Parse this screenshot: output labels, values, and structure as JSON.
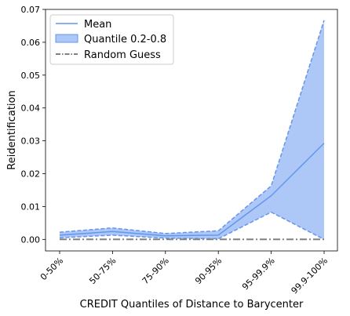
{
  "chart_data": {
    "type": "line",
    "categories": [
      "0-50%",
      "50-75%",
      "75-90%",
      "90-95%",
      "95-99.9%",
      "99.9-100%"
    ],
    "xlabel": "CREDIT Quantiles of Distance to Barycenter",
    "ylabel": "Reidentification",
    "ylim": [
      -0.0035,
      0.07
    ],
    "yticks": [
      0.0,
      0.01,
      0.02,
      0.03,
      0.04,
      0.05,
      0.06,
      0.07
    ],
    "ytick_labels": [
      "0.00",
      "0.01",
      "0.02",
      "0.03",
      "0.04",
      "0.05",
      "0.06",
      "0.07"
    ],
    "grid": false,
    "legend_position": "top-left",
    "series": [
      {
        "name": "Mean",
        "kind": "line",
        "color": "#6495ED",
        "values": [
          0.0013,
          0.0024,
          0.0011,
          0.0013,
          0.0133,
          0.0293
        ]
      },
      {
        "name": "Quantile 0.2-0.8",
        "kind": "band",
        "color": "#ADC8F7",
        "edge_color": "#6495ED",
        "lower": [
          0.0005,
          0.0013,
          0.0004,
          0.0002,
          0.0083,
          0.0
        ],
        "upper": [
          0.0022,
          0.0035,
          0.0018,
          0.0026,
          0.0163,
          0.0667
        ]
      },
      {
        "name": "Random Guess",
        "kind": "line",
        "color": "#808080",
        "linestyle": "dashdot",
        "values": [
          0.0,
          0.0,
          0.0,
          0.0,
          0.0,
          0.0
        ]
      }
    ]
  }
}
